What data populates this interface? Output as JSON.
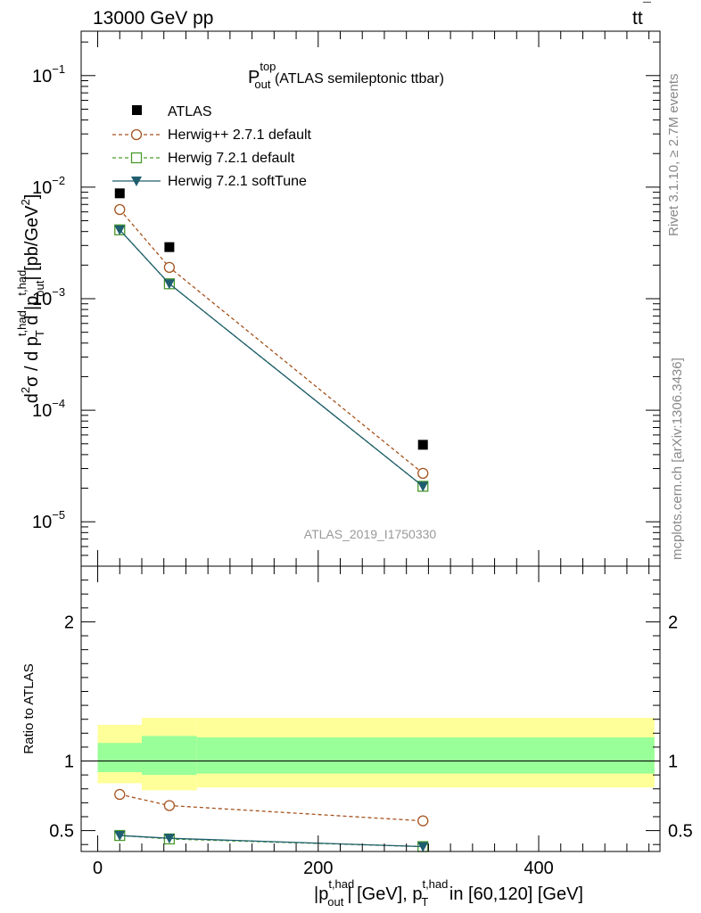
{
  "header": {
    "left": "13000 GeV pp",
    "right_main": "tt",
    "right_bar": "¯"
  },
  "side_texts": {
    "rivet": "Rivet 3.1.10, ≥ 2.7M events",
    "mcplots": "mcplots.cern.ch [arXiv:1306.3436]"
  },
  "chart_data": [
    {
      "type": "line",
      "panel": "main",
      "title": {
        "main": "P",
        "sup": "top",
        "sub": "out",
        "rest": " (ATLAS semileptonic ttbar)"
      },
      "watermark": "ATLAS_2019_I1750330",
      "ylabel": {
        "part1": "d",
        "sup2": "2",
        "part2": "σ / d p",
        "sup_t": "t,had",
        "sub_t": "T",
        "part3": " d |p",
        "sup_out": "t,had",
        "sub_out": "out",
        "part4": "| [pb/GeV",
        "sup_gev": "2",
        "part5": "]"
      },
      "yscale": "log",
      "ylim": [
        4e-06,
        0.25
      ],
      "xlim": [
        -15,
        510
      ],
      "yticks": [
        {
          "v": 1e-05,
          "base": "10",
          "exp": "−5"
        },
        {
          "v": 0.0001,
          "base": "10",
          "exp": "−4"
        },
        {
          "v": 0.001,
          "base": "10",
          "exp": "−3"
        },
        {
          "v": 0.01,
          "base": "10",
          "exp": "−2"
        },
        {
          "v": 0.1,
          "base": "10",
          "exp": "−1"
        }
      ],
      "legend_position": "top-left",
      "series": [
        {
          "name": "ATLAS",
          "style": "data",
          "color": "#000000",
          "x": [
            20,
            65,
            295
          ],
          "y": [
            0.0088,
            0.0029,
            4.9e-05
          ]
        },
        {
          "name": "Herwig++ 2.7.1 default",
          "style": "circle-dashed",
          "color": "#a5521e",
          "x": [
            20,
            65,
            295
          ],
          "y": [
            0.0063,
            0.00191,
            2.72e-05
          ]
        },
        {
          "name": "Herwig 7.2.1 default",
          "style": "square-dashed",
          "color": "#4a9a2a",
          "x": [
            20,
            65,
            295
          ],
          "y": [
            0.00414,
            0.00136,
            2.08e-05
          ]
        },
        {
          "name": "Herwig 7.2.1 softTune",
          "style": "triangle-solid",
          "color": "#1e5e6e",
          "x": [
            20,
            65,
            295
          ],
          "y": [
            0.00414,
            0.00136,
            2.08e-05
          ]
        }
      ]
    },
    {
      "type": "line",
      "panel": "ratio",
      "ylabel": "Ratio to ATLAS",
      "ylim": [
        0.35,
        2.4
      ],
      "xlim": [
        -15,
        510
      ],
      "yticks": [
        0.5,
        1,
        2
      ],
      "ytick_labels": [
        "0.5",
        "1",
        "2"
      ],
      "xticks": [
        0,
        200,
        400
      ],
      "xtick_labels": [
        "0",
        "200",
        "400"
      ],
      "xlabel": {
        "p1": "|p",
        "sup1": "t,had",
        "sub1": "out",
        "p2": "| [GeV], p",
        "sup2": "t,had",
        "sub2": "T",
        "p3": " in [60,120] [GeV]"
      },
      "bands": [
        {
          "x0": 0,
          "x1": 40,
          "yellow": [
            0.84,
            1.26
          ],
          "green": [
            0.92,
            1.13
          ]
        },
        {
          "x0": 40,
          "x1": 90,
          "yellow": [
            0.79,
            1.31
          ],
          "green": [
            0.9,
            1.18
          ]
        },
        {
          "x0": 90,
          "x1": 505,
          "yellow": [
            0.81,
            1.31
          ],
          "green": [
            0.91,
            1.17
          ]
        }
      ],
      "series": [
        {
          "name": "Herwig++ 2.7.1 default",
          "style": "circle-dashed",
          "color": "#a5521e",
          "x": [
            20,
            65,
            295
          ],
          "y": [
            0.76,
            0.68,
            0.57
          ]
        },
        {
          "name": "Herwig 7.2.1 default",
          "style": "square-dashed",
          "color": "#4a9a2a",
          "x": [
            20,
            65,
            295
          ],
          "y": [
            0.465,
            0.44,
            0.385
          ]
        },
        {
          "name": "Herwig 7.2.1 softTune",
          "style": "triangle-solid",
          "color": "#1e5e6e",
          "x": [
            20,
            65,
            295
          ],
          "y": [
            0.465,
            0.445,
            0.385
          ]
        }
      ]
    }
  ]
}
